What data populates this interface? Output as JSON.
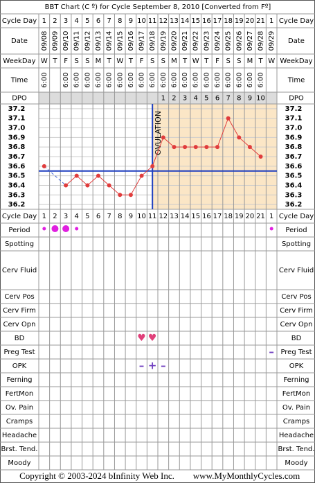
{
  "chart_data": {
    "type": "line",
    "title": "BBT Chart (C º) for Cycle September 8, 2010  [Converted from Fº]",
    "row_labels": {
      "cycle_day": "Cycle Day",
      "date": "Date",
      "weekday": "WeekDay",
      "time": "Time",
      "dpo": "DPO"
    },
    "cycle_days": [
      1,
      2,
      3,
      4,
      5,
      6,
      7,
      8,
      9,
      10,
      11,
      12,
      13,
      14,
      15,
      16,
      17,
      18,
      19,
      20,
      21,
      1
    ],
    "dates": [
      "09/08",
      "09/09",
      "09/10",
      "09/11",
      "09/12",
      "09/13",
      "09/14",
      "09/15",
      "09/16",
      "09/17",
      "09/18",
      "09/19",
      "09/20",
      "09/21",
      "09/22",
      "09/23",
      "09/24",
      "09/25",
      "09/26",
      "09/27",
      "09/28",
      "09/29"
    ],
    "weekdays": [
      "W",
      "T",
      "F",
      "S",
      "S",
      "M",
      "T",
      "W",
      "T",
      "F",
      "S",
      "S",
      "M",
      "T",
      "W",
      "T",
      "F",
      "S",
      "S",
      "M",
      "T",
      "W"
    ],
    "times": [
      "6:00",
      null,
      "6:00",
      "6:00",
      "6:00",
      "6:00",
      "6:00",
      "6:00",
      "6:00",
      "6:00",
      "6:00",
      "6:00",
      "6:00",
      "6:00",
      "6:00",
      "6:00",
      "6:00",
      "6:00",
      "6:00",
      "6:00",
      "6:00",
      null
    ],
    "dpo": [
      null,
      null,
      null,
      null,
      null,
      null,
      null,
      null,
      null,
      null,
      null,
      1,
      2,
      3,
      4,
      5,
      6,
      7,
      8,
      9,
      10,
      null
    ],
    "values": [
      36.6,
      null,
      36.4,
      36.5,
      36.4,
      36.5,
      36.4,
      36.3,
      36.3,
      36.5,
      36.6,
      36.9,
      36.8,
      36.8,
      36.8,
      36.8,
      36.8,
      37.1,
      36.9,
      36.8,
      36.7,
      null
    ],
    "color": "#e03c3c",
    "ylim": [
      36.15,
      37.25
    ],
    "yticks": [
      37.2,
      37.1,
      {
        "value": 37,
        "label": "37.0"
      },
      36.9,
      36.8,
      36.7,
      36.6,
      36.5,
      36.4,
      36.3,
      36.2
    ],
    "grid": true,
    "coverline": 36.55,
    "ovulation_day": 11,
    "ovulation_label": "OVULATION",
    "tracking": [
      {
        "label": "Period",
        "marks": [
          "light",
          "heavy",
          "heavy",
          "light",
          null,
          null,
          null,
          null,
          null,
          null,
          null,
          null,
          null,
          null,
          null,
          null,
          null,
          null,
          null,
          null,
          null,
          "light"
        ]
      },
      {
        "label": "Spotting"
      },
      {
        "label": "Cerv Fluid"
      },
      {
        "label": "Cerv Pos"
      },
      {
        "label": "Cerv Firm"
      },
      {
        "label": "Cerv Opn"
      },
      {
        "label": "BD",
        "symbols": [
          null,
          null,
          null,
          null,
          null,
          null,
          null,
          null,
          null,
          "♥",
          "♥",
          null,
          null,
          null,
          null,
          null,
          null,
          null,
          null,
          null,
          null,
          null
        ]
      },
      {
        "label": "Preg Test",
        "symbols": [
          null,
          null,
          null,
          null,
          null,
          null,
          null,
          null,
          null,
          null,
          null,
          null,
          null,
          null,
          null,
          null,
          null,
          null,
          null,
          null,
          null,
          "–"
        ]
      },
      {
        "label": "OPK",
        "symbols": [
          null,
          null,
          null,
          null,
          null,
          null,
          null,
          null,
          null,
          "–",
          "+",
          "–",
          null,
          null,
          null,
          null,
          null,
          null,
          null,
          null,
          null,
          null
        ]
      },
      {
        "label": "Ferning"
      },
      {
        "label": "FertMon"
      },
      {
        "label": "Ov. Pain"
      },
      {
        "label": "Cramps"
      },
      {
        "label": "Headache"
      },
      {
        "label": "Brst. Tend."
      },
      {
        "label": "Moody"
      }
    ],
    "footer": {
      "copyright": "Copyright © 2003-2024 bInfinity Web Inc.",
      "site": "www.MyMonthlyCycles.com"
    }
  }
}
